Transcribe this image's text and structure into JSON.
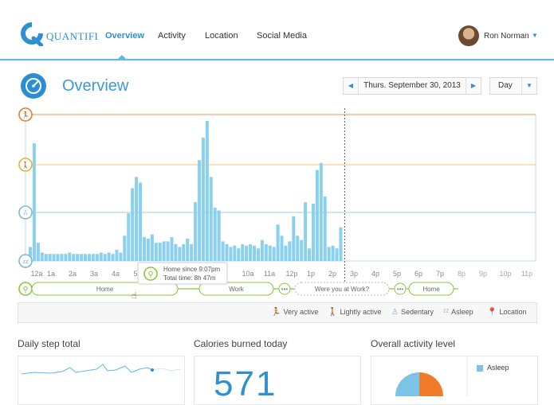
{
  "header": {
    "brand": "QUANTIFI",
    "nav": [
      {
        "label": "Overview",
        "active": true
      },
      {
        "label": "Activity",
        "active": false
      },
      {
        "label": "Location",
        "active": false
      },
      {
        "label": "Social Media",
        "active": false
      }
    ],
    "user_name": "Ron Norman",
    "accent": "#2f8fd0"
  },
  "page": {
    "title": "Overview",
    "date": "Thurs. September 30, 2013",
    "range": "Day"
  },
  "chart_data": {
    "type": "bar",
    "x_ticks": [
      "12a",
      "1a",
      "2a",
      "3a",
      "4a",
      "5",
      "10a",
      "11a",
      "12p",
      "1p",
      "2p",
      "3p",
      "4p",
      "5p",
      "6p",
      "7p",
      "8p",
      "9p",
      "10p",
      "11p"
    ],
    "levels": [
      "Very active",
      "Lightly active",
      "Sedentary",
      "Asleep"
    ],
    "values": [
      10,
      84,
      13,
      6,
      5,
      5,
      5,
      5,
      5,
      5,
      6,
      5,
      5,
      5,
      5,
      5,
      5,
      5,
      6,
      5,
      6,
      5,
      8,
      6,
      18,
      34,
      52,
      60,
      56,
      17,
      16,
      19,
      13,
      13,
      14,
      14,
      17,
      12,
      10,
      12,
      16,
      12,
      42,
      72,
      88,
      100,
      60,
      38,
      36,
      14,
      12,
      10,
      11,
      9,
      12,
      11,
      12,
      11,
      9,
      15,
      12,
      11,
      10,
      26,
      18,
      11,
      14,
      32,
      18,
      15,
      42,
      9,
      41,
      65,
      70,
      46,
      10,
      11,
      9,
      24
    ],
    "current_time_index": 80,
    "series_color": "#8ad0f0",
    "level_colors": {
      "very_active": "#f07b2b",
      "lightly_active": "#f4a93c",
      "sedentary": "#7fb6d8",
      "asleep": "#7fb6d8"
    }
  },
  "location_track": {
    "segments": [
      "Home",
      "Work",
      "Were you at Work?",
      "Home"
    ],
    "tooltip_line1": "Home since 9:07pm",
    "tooltip_line2": "Total time: 8h 47m",
    "color": "#8cc63e"
  },
  "legend": {
    "very_active": "Very active",
    "lightly_active": "Lightly active",
    "sedentary": "Sedentary",
    "asleep": "Asleep",
    "location": "Location"
  },
  "panels": {
    "steps_title": "Daily step total",
    "calories_title": "Calories burned today",
    "calories_value": "571",
    "activity_title": "Overall activity level",
    "asleep_label": "Asleep"
  }
}
